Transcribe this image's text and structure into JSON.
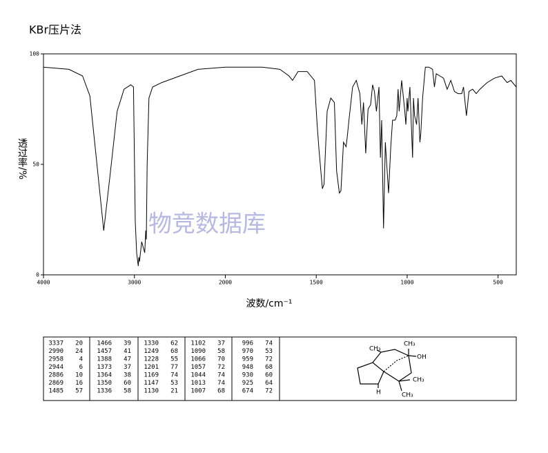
{
  "chart_data": {
    "type": "line",
    "title": "KBr压片法",
    "xlabel": "波数/cm⁻¹",
    "ylabel": "透过率/%",
    "watermark": "物竞数据库",
    "xlim": [
      4000,
      400
    ],
    "xticks": [
      4000,
      3000,
      2000,
      1500,
      1000,
      500
    ],
    "xscale": {
      "type": "compressed",
      "break": 2000,
      "factor": 2
    },
    "ylim": [
      0,
      100
    ],
    "yticks": [
      0,
      50,
      100
    ],
    "color": "#000000",
    "x": [
      4000,
      3720,
      3570,
      3490,
      3417,
      3337,
      3265,
      3190,
      3114,
      3040,
      3010,
      2990,
      2975,
      2958,
      2950,
      2944,
      2920,
      2900,
      2886,
      2875,
      2869,
      2860,
      2840,
      2800,
      2700,
      2500,
      2300,
      2000,
      1800,
      1700,
      1650,
      1630,
      1600,
      1550,
      1510,
      1495,
      1485,
      1466,
      1457,
      1440,
      1420,
      1400,
      1388,
      1373,
      1364,
      1350,
      1336,
      1330,
      1320,
      1300,
      1280,
      1260,
      1249,
      1240,
      1228,
      1215,
      1201,
      1190,
      1180,
      1169,
      1155,
      1147,
      1140,
      1130,
      1120,
      1102,
      1090,
      1080,
      1066,
      1057,
      1050,
      1044,
      1030,
      1013,
      1007,
      1000,
      996,
      985,
      970,
      965,
      959,
      948,
      940,
      930,
      925,
      915,
      900,
      880,
      860,
      850,
      840,
      820,
      800,
      780,
      760,
      740,
      720,
      700,
      690,
      674,
      660,
      640,
      620,
      600,
      560,
      520,
      480,
      450,
      430,
      400
    ],
    "values": [
      94,
      93,
      90,
      81,
      52,
      20,
      46,
      74,
      84,
      86,
      85,
      24,
      10,
      4,
      8,
      6,
      15,
      12,
      10,
      20,
      16,
      50,
      80,
      85,
      87,
      90,
      93,
      94,
      94,
      93,
      90,
      88,
      92,
      92,
      88,
      68,
      57,
      39,
      41,
      74,
      80,
      78,
      47,
      37,
      38,
      60,
      58,
      62,
      70,
      85,
      88,
      82,
      68,
      78,
      55,
      75,
      77,
      86,
      83,
      74,
      85,
      53,
      70,
      21,
      60,
      37,
      58,
      70,
      70,
      72,
      84,
      74,
      88,
      74,
      68,
      80,
      74,
      85,
      53,
      80,
      72,
      68,
      80,
      60,
      64,
      80,
      94,
      94,
      93,
      85,
      91,
      90,
      89,
      84,
      88,
      83,
      82,
      82,
      85,
      72,
      83,
      84,
      82,
      84,
      87,
      89,
      90,
      87,
      88,
      85
    ]
  },
  "peak_table": [
    [
      [
        3337,
        20
      ],
      [
        2990,
        24
      ],
      [
        2958,
        4
      ],
      [
        2944,
        6
      ],
      [
        2886,
        10
      ],
      [
        2869,
        16
      ],
      [
        1485,
        57
      ]
    ],
    [
      [
        1466,
        39
      ],
      [
        1457,
        41
      ],
      [
        1388,
        47
      ],
      [
        1373,
        37
      ],
      [
        1364,
        38
      ],
      [
        1350,
        60
      ],
      [
        1336,
        58
      ]
    ],
    [
      [
        1330,
        62
      ],
      [
        1249,
        68
      ],
      [
        1228,
        55
      ],
      [
        1201,
        77
      ],
      [
        1169,
        74
      ],
      [
        1147,
        53
      ],
      [
        1130,
        21
      ]
    ],
    [
      [
        1102,
        37
      ],
      [
        1090,
        58
      ],
      [
        1066,
        70
      ],
      [
        1057,
        72
      ],
      [
        1044,
        74
      ],
      [
        1013,
        74
      ],
      [
        1007,
        68
      ]
    ],
    [
      [
        996,
        74
      ],
      [
        970,
        53
      ],
      [
        959,
        72
      ],
      [
        948,
        68
      ],
      [
        930,
        60
      ],
      [
        925,
        64
      ],
      [
        674,
        72
      ]
    ]
  ],
  "structure": {
    "labels": [
      "CH₃",
      "CH₃",
      "OH",
      "CH₃",
      "H",
      "CH₃"
    ]
  }
}
